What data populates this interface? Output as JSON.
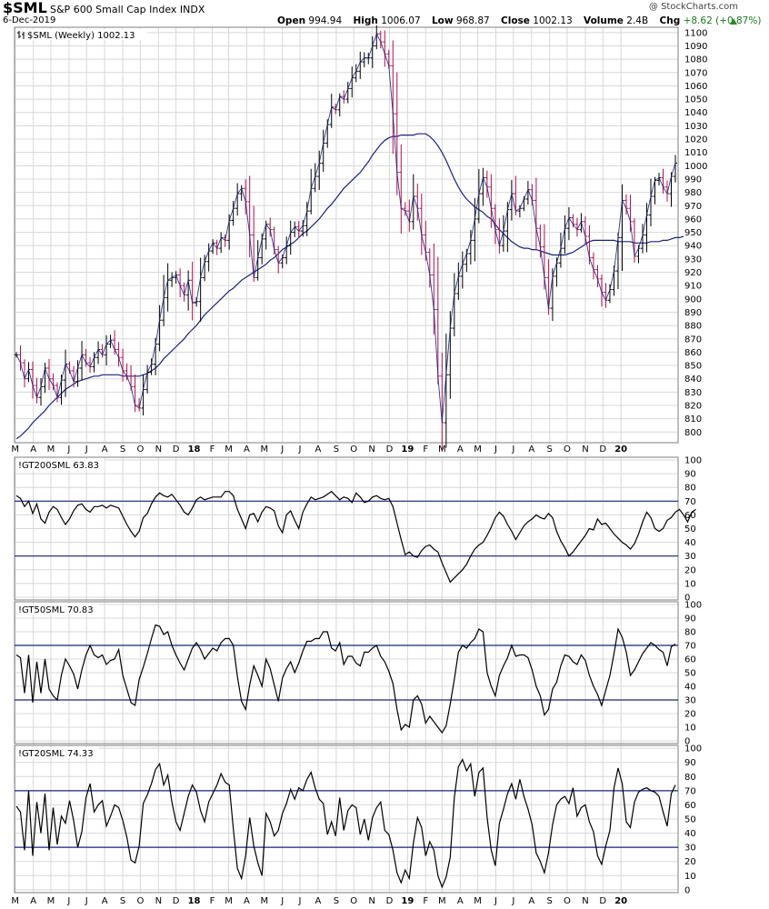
{
  "header": {
    "symbol": "$SML",
    "name": "S&P 600 Small Cap Index",
    "exchange": "INDX",
    "date": "6-Dec-2019",
    "credit": "@ StockCharts.com",
    "open_label": "Open",
    "open": "994.94",
    "high_label": "High",
    "high": "1006.07",
    "low_label": "Low",
    "low": "968.87",
    "close_label": "Close",
    "close": "1002.13",
    "volume_label": "Volume",
    "volume": "2.4B",
    "chg_label": "Chg",
    "chg": "+8.62 (+0.87%)"
  },
  "colors": {
    "price_up": "#000000",
    "price_down": "#b01050",
    "moving_average": "#1a237e",
    "reference_line": "#1a237e",
    "grid": "#d8d8d8",
    "panel_border": "#7f7f7f",
    "indicator_line": "#000000",
    "chg_positive": "#1a7a1a"
  },
  "chart_data": [
    {
      "type": "line",
      "panel": "price",
      "legend": "$SML (Weekly) 1002.13",
      "ylim": [
        792,
        1104
      ],
      "yticks": [
        800,
        810,
        820,
        830,
        840,
        850,
        860,
        870,
        880,
        890,
        900,
        910,
        920,
        930,
        940,
        950,
        960,
        970,
        980,
        990,
        1000,
        1010,
        1020,
        1030,
        1040,
        1050,
        1060,
        1070,
        1080,
        1090,
        1100
      ],
      "xticks": [
        "M",
        "A",
        "M",
        "J",
        "J",
        "A",
        "S",
        "O",
        "N",
        "D",
        "18",
        "F",
        "M",
        "A",
        "M",
        "J",
        "J",
        "A",
        "S",
        "O",
        "N",
        "D",
        "19",
        "F",
        "M",
        "A",
        "M",
        "J",
        "J",
        "A",
        "S",
        "O",
        "N",
        "D",
        "20"
      ],
      "x_start": "2017-03-03",
      "x_step_weeks": 1,
      "series": [
        {
          "kind": "weekly_close",
          "values": [
            858,
            852,
            840,
            847,
            835,
            826,
            834,
            848,
            840,
            835,
            826,
            839,
            851,
            846,
            838,
            848,
            858,
            852,
            849,
            856,
            862,
            858,
            866,
            869,
            862,
            856,
            846,
            842,
            834,
            820,
            818,
            832,
            845,
            851,
            866,
            884,
            901,
            914,
            916,
            918,
            910,
            903,
            914,
            897,
            898,
            916,
            928,
            936,
            942,
            938,
            946,
            944,
            959,
            968,
            979,
            983,
            973,
            948,
            916,
            931,
            945,
            956,
            952,
            937,
            927,
            931,
            940,
            950,
            954,
            951,
            955,
            966,
            983,
            992,
            1002,
            1017,
            1031,
            1044,
            1042,
            1052,
            1050,
            1058,
            1066,
            1071,
            1078,
            1081,
            1081,
            1090,
            1099,
            1093,
            1084,
            1075,
            1039,
            995,
            968,
            966,
            958,
            977,
            968,
            948,
            935,
            918,
            892,
            842,
            807,
            843,
            878,
            904,
            917,
            926,
            934,
            944,
            960,
            979,
            991,
            984,
            968,
            952,
            940,
            951,
            967,
            979,
            966,
            968,
            975,
            982,
            974,
            953,
            939,
            916,
            893,
            917,
            927,
            938,
            953,
            961,
            956,
            952,
            958,
            947,
            931,
            922,
            915,
            905,
            899,
            907,
            921,
            946,
            974,
            968,
            958,
            932,
            938,
            948,
            963,
            977,
            989,
            991,
            984,
            979,
            992,
            1002
          ],
          "values_are": "approximate weekly closes read from the chart"
        },
        {
          "kind": "moving_average",
          "values": [
            795,
            797,
            800,
            803,
            807,
            810,
            813,
            816,
            820,
            823,
            826,
            829,
            832,
            834,
            836,
            838,
            839,
            840,
            841,
            842,
            842,
            843,
            843,
            843,
            843,
            843,
            842,
            842,
            842,
            842,
            842,
            843,
            844,
            846,
            848,
            851,
            855,
            858,
            861,
            864,
            867,
            870,
            874,
            877,
            880,
            884,
            888,
            891,
            894,
            897,
            900,
            903,
            906,
            908,
            911,
            914,
            916,
            918,
            920,
            922,
            924,
            926,
            929,
            931,
            934,
            937,
            939,
            941,
            943,
            946,
            949,
            951,
            954,
            957,
            960,
            964,
            968,
            971,
            975,
            979,
            983,
            986,
            989,
            992,
            995,
            999,
            1003,
            1008,
            1012,
            1016,
            1019,
            1021,
            1022,
            1022,
            1023,
            1023,
            1023,
            1023,
            1024,
            1024,
            1024,
            1022,
            1019,
            1015,
            1010,
            1004,
            997,
            990,
            984,
            979,
            975,
            972,
            969,
            967,
            965,
            962,
            960,
            956,
            952,
            949,
            946,
            943,
            941,
            939,
            938,
            938,
            937,
            937,
            936,
            935,
            934,
            933,
            933,
            933,
            933,
            934,
            935,
            937,
            939,
            941,
            943,
            944,
            944,
            944,
            944,
            944,
            944,
            943,
            943,
            943,
            943,
            942,
            942,
            942,
            942,
            943,
            943,
            943,
            944,
            944,
            945,
            946,
            946,
            947
          ]
        }
      ]
    },
    {
      "type": "line",
      "panel": "indicator",
      "legend": "!GT200SML 63.83",
      "ylim": [
        -2,
        102
      ],
      "yticks": [
        0,
        10,
        20,
        30,
        40,
        50,
        60,
        70,
        80,
        90,
        100
      ],
      "reference_lines": [
        30,
        70
      ],
      "values": [
        74,
        72,
        66,
        70,
        61,
        68,
        57,
        54,
        62,
        66,
        64,
        58,
        53,
        57,
        63,
        67,
        68,
        64,
        62,
        66,
        66,
        67,
        65,
        67,
        66,
        65,
        59,
        53,
        48,
        44,
        48,
        58,
        61,
        68,
        73,
        76,
        74,
        73,
        75,
        71,
        67,
        62,
        60,
        65,
        71,
        73,
        71,
        72,
        73,
        73,
        73,
        77,
        77,
        74,
        64,
        57,
        50,
        60,
        61,
        55,
        62,
        66,
        65,
        63,
        52,
        47,
        60,
        63,
        56,
        50,
        62,
        68,
        73,
        71,
        72,
        73,
        75,
        77,
        74,
        71,
        73,
        72,
        69,
        76,
        73,
        69,
        70,
        73,
        74,
        72,
        71,
        72,
        66,
        54,
        42,
        31,
        33,
        30,
        29,
        34,
        37,
        38,
        35,
        33,
        25,
        18,
        11,
        14,
        17,
        20,
        24,
        30,
        35,
        38,
        40,
        45,
        51,
        58,
        62,
        59,
        53,
        48,
        42,
        47,
        52,
        55,
        57,
        60,
        58,
        57,
        61,
        58,
        48,
        41,
        36,
        30,
        33,
        37,
        41,
        45,
        50,
        49,
        57,
        53,
        54,
        50,
        46,
        43,
        40,
        38,
        35,
        39,
        46,
        55,
        62,
        58,
        50,
        48,
        50,
        56,
        58,
        62,
        64,
        60,
        55,
        62,
        64
      ],
      "values_are": "approximate weekly readings"
    },
    {
      "type": "line",
      "panel": "indicator",
      "legend": "!GT50SML 70.83",
      "ylim": [
        -2,
        102
      ],
      "yticks": [
        0,
        10,
        20,
        30,
        40,
        50,
        60,
        70,
        80,
        90,
        100
      ],
      "reference_lines": [
        30,
        70
      ],
      "values": [
        63,
        61,
        35,
        63,
        28,
        58,
        35,
        60,
        38,
        33,
        30,
        48,
        60,
        55,
        49,
        38,
        52,
        63,
        70,
        63,
        61,
        63,
        56,
        59,
        60,
        67,
        48,
        38,
        28,
        26,
        45,
        54,
        64,
        75,
        85,
        84,
        78,
        80,
        70,
        63,
        57,
        52,
        60,
        68,
        72,
        67,
        60,
        64,
        68,
        66,
        72,
        75,
        75,
        70,
        47,
        29,
        23,
        41,
        55,
        48,
        40,
        60,
        53,
        41,
        29,
        46,
        53,
        58,
        50,
        57,
        66,
        73,
        73,
        75,
        75,
        80,
        80,
        68,
        66,
        72,
        56,
        62,
        62,
        57,
        55,
        65,
        65,
        68,
        70,
        62,
        58,
        51,
        42,
        23,
        8,
        12,
        10,
        30,
        33,
        27,
        13,
        18,
        14,
        10,
        6,
        11,
        27,
        45,
        65,
        70,
        68,
        72,
        75,
        82,
        80,
        50,
        40,
        33,
        48,
        55,
        61,
        70,
        62,
        63,
        63,
        61,
        52,
        40,
        33,
        19,
        23,
        38,
        43,
        55,
        63,
        62,
        58,
        56,
        63,
        59,
        48,
        40,
        34,
        26,
        37,
        48,
        64,
        82,
        76,
        65,
        48,
        52,
        58,
        64,
        68,
        72,
        70,
        67,
        65,
        55,
        69,
        71
      ],
      "values_are": "approximate weekly readings"
    },
    {
      "type": "line",
      "panel": "indicator",
      "legend": "!GT20SML 74.33",
      "ylim": [
        -2,
        102
      ],
      "yticks": [
        0,
        10,
        20,
        30,
        40,
        50,
        60,
        70,
        80,
        90,
        100
      ],
      "reference_lines": [
        30,
        70
      ],
      "values": [
        59,
        55,
        28,
        70,
        24,
        62,
        40,
        68,
        28,
        58,
        32,
        52,
        47,
        63,
        49,
        30,
        41,
        65,
        75,
        55,
        60,
        63,
        45,
        52,
        60,
        58,
        49,
        37,
        21,
        19,
        31,
        61,
        67,
        75,
        85,
        89,
        74,
        81,
        62,
        48,
        42,
        54,
        66,
        74,
        69,
        56,
        48,
        62,
        68,
        74,
        82,
        76,
        74,
        43,
        15,
        8,
        24,
        51,
        31,
        19,
        10,
        54,
        48,
        38,
        42,
        54,
        61,
        71,
        64,
        72,
        70,
        78,
        83,
        72,
        64,
        61,
        39,
        48,
        38,
        65,
        42,
        56,
        60,
        58,
        39,
        50,
        35,
        51,
        58,
        62,
        42,
        39,
        28,
        12,
        5,
        14,
        8,
        33,
        51,
        44,
        24,
        34,
        28,
        10,
        2,
        9,
        23,
        65,
        87,
        92,
        84,
        89,
        66,
        83,
        86,
        51,
        28,
        17,
        47,
        57,
        68,
        75,
        64,
        78,
        66,
        57,
        46,
        26,
        20,
        12,
        26,
        46,
        60,
        64,
        66,
        61,
        72,
        52,
        58,
        60,
        48,
        41,
        24,
        18,
        31,
        42,
        72,
        86,
        75,
        48,
        44,
        62,
        69,
        71,
        72,
        70,
        69,
        66,
        55,
        45,
        68,
        74
      ],
      "values_are": "approximate weekly readings"
    }
  ]
}
